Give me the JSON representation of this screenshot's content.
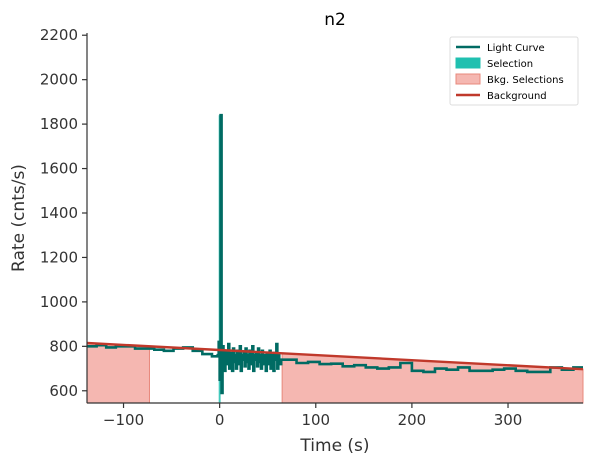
{
  "chart_data": {
    "type": "line",
    "title": "n2",
    "xlabel": "Time (s)",
    "ylabel": "Rate (cnts/s)",
    "xlim": [
      -138,
      378
    ],
    "ylim": [
      545,
      2210
    ],
    "xticks": [
      -100,
      0,
      100,
      200,
      300
    ],
    "xtick_labels": [
      "−100",
      "0",
      "100",
      "200",
      "300"
    ],
    "yticks": [
      600,
      800,
      1000,
      1200,
      1400,
      1600,
      1800,
      2000,
      2200
    ],
    "ytick_labels": [
      "600",
      "800",
      "1000",
      "1200",
      "1400",
      "1600",
      "1800",
      "2000",
      "2200"
    ],
    "grid": false,
    "legend": {
      "placement": "top-right",
      "entries": [
        {
          "label": "Light Curve",
          "kind": "line",
          "color": "#006b63"
        },
        {
          "label": "Selection",
          "kind": "patch",
          "color": "#20c0b0"
        },
        {
          "label": "Bkg. Selections",
          "kind": "patch",
          "color": "#f5b7b1"
        },
        {
          "label": "Background",
          "kind": "line",
          "color": "#c0392b"
        }
      ]
    },
    "light_curve": {
      "color": "#006b63",
      "coarse_steps": [
        [
          -138,
          800
        ],
        [
          -128,
          805
        ],
        [
          -118,
          795
        ],
        [
          -108,
          800
        ],
        [
          -98,
          800
        ],
        [
          -88,
          790
        ],
        [
          -78,
          790
        ],
        [
          -68,
          785
        ],
        [
          -58,
          780
        ],
        [
          -48,
          790
        ],
        [
          -38,
          795
        ],
        [
          -28,
          780
        ],
        [
          -18,
          765
        ],
        [
          -8,
          755
        ],
        [
          70,
          740
        ],
        [
          80,
          725
        ],
        [
          92,
          730
        ],
        [
          104,
          720
        ],
        [
          116,
          722
        ],
        [
          128,
          710
        ],
        [
          140,
          715
        ],
        [
          152,
          705
        ],
        [
          164,
          700
        ],
        [
          176,
          705
        ],
        [
          188,
          725
        ],
        [
          200,
          690
        ],
        [
          212,
          685
        ],
        [
          224,
          700
        ],
        [
          236,
          695
        ],
        [
          248,
          705
        ],
        [
          260,
          690
        ],
        [
          272,
          690
        ],
        [
          284,
          695
        ],
        [
          296,
          700
        ],
        [
          308,
          690
        ],
        [
          320,
          685
        ],
        [
          332,
          685
        ],
        [
          344,
          705
        ],
        [
          356,
          695
        ],
        [
          368,
          705
        ]
      ],
      "coarse_end": 378,
      "fine_bin_width": 1.0,
      "fine_start": -2,
      "fine_values": [
        760,
        820,
        650,
        1840,
        590,
        800,
        740,
        690,
        780,
        720,
        760,
        810,
        700,
        770,
        740,
        690,
        790,
        730,
        760,
        700,
        780,
        740,
        720,
        800,
        690,
        760,
        740,
        770,
        710,
        790,
        730,
        760,
        700,
        780,
        740,
        720,
        800,
        690,
        760,
        740,
        770,
        710,
        790,
        730,
        760,
        700,
        780,
        740,
        720,
        760,
        690,
        770,
        740,
        720,
        780,
        700,
        760,
        740,
        690,
        770,
        740,
        810,
        700,
        760,
        730,
        720,
        740
      ]
    },
    "selection": {
      "x": [
        -1,
        1
      ],
      "color": "#20c0b0"
    },
    "background_selections": {
      "color": "#f5b7b1",
      "edge": "#e8887c",
      "ranges": [
        [
          -138,
          -73
        ],
        [
          65,
          378
        ]
      ]
    },
    "background_fit": {
      "color": "#c0392b",
      "x": [
        -138,
        378
      ],
      "y": [
        815,
        697
      ]
    }
  }
}
